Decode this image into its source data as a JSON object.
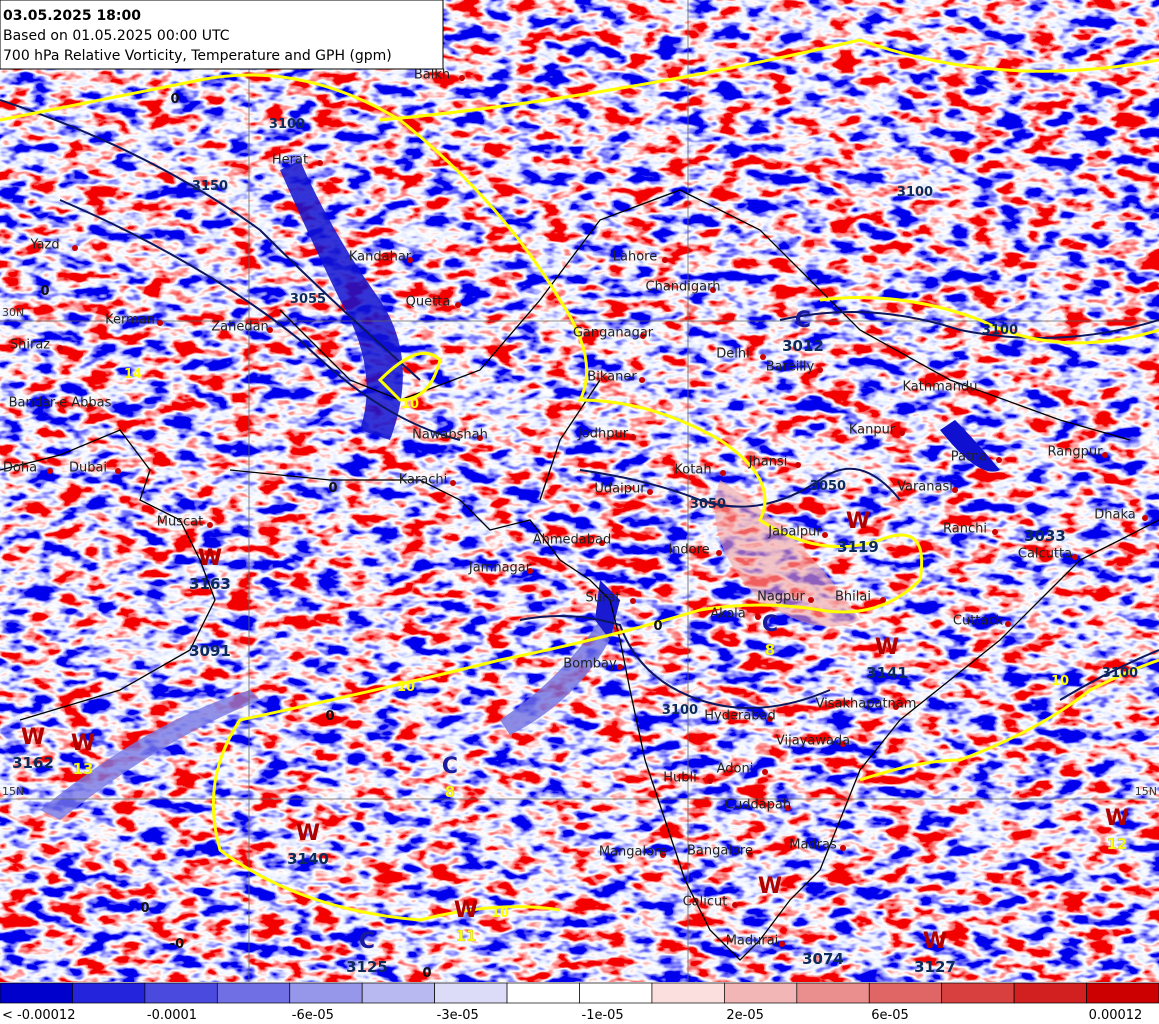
{
  "header": {
    "lines": [
      "03.05.2025 18:00",
      "Based on 01.05.2025 00:00 UTC",
      "700 hPa Relative Vorticity, Temperature and GPH (gpm)"
    ]
  },
  "colorbar": {
    "colors": [
      "#0000cc",
      "#2424dd",
      "#4a4ade",
      "#7070e4",
      "#9696ea",
      "#b9b9f2",
      "#dcdcf9",
      "#ffffff",
      "#ffffff",
      "#fbdede",
      "#f3b6b6",
      "#eb8e8e",
      "#e06666",
      "#d84040",
      "#d21f1f",
      "#cc0000"
    ],
    "labels": [
      "< -0.00012",
      "-0.0001",
      "-6e-05",
      "-3e-05",
      "-1e-05",
      "2e-05",
      "6e-05",
      "0.00012"
    ]
  },
  "grid_labels": [
    "30N",
    "15N",
    "15N"
  ],
  "places": [
    "Herat",
    "Kandahar",
    "Quetta",
    "Lahore",
    "Chandigarh",
    "Delhi",
    "Bareilly",
    "Kanpur",
    "Jodhpur",
    "Kotah",
    "Jhansi",
    "Udaipur",
    "Ahmedabad",
    "Indore",
    "Jamnagar",
    "Surat",
    "Jabalpur",
    "Nagpur",
    "Bhilai",
    "Akola",
    "Bombay",
    "Hyderabad",
    "Visakhapatnam",
    "Vijayawada",
    "Hubli",
    "Adoni",
    "Cuddapah",
    "Mangalore",
    "Bangalore",
    "Madras",
    "Calicut",
    "Madurai",
    "Varanasi",
    "Ranchi",
    "Calcutta",
    "Patna",
    "Rangpur",
    "Dhaka",
    "Cuttack",
    "Kathmandu",
    "Karachi",
    "Nawabshah",
    "Muscat",
    "Dubai",
    "Doha",
    "Bandar-e Abbas",
    "Kerman",
    "Shiraz",
    "Yazd",
    "Zahedan",
    "Ganganagar",
    "Bikaner",
    "Balkh"
  ],
  "centers": [
    {
      "letter": "W",
      "value": 3163
    },
    {
      "value": 3091
    },
    {
      "letter": "W",
      "value": 3162
    },
    {
      "letter": "W",
      "value": 13
    },
    {
      "letter": "C",
      "value": 8
    },
    {
      "letter": "W",
      "value": 3140
    },
    {
      "letter": "W",
      "value": 11
    },
    {
      "letter": "C",
      "value": 3125
    },
    {
      "letter": "W",
      "value": 3119
    },
    {
      "letter": "C",
      "value": 8
    },
    {
      "letter": "W",
      "value": 3141
    },
    {
      "letter": "W"
    },
    {
      "value": 3074
    },
    {
      "letter": "W",
      "value": 3127
    },
    {
      "letter": "W",
      "value": 12
    },
    {
      "letter": "C",
      "value": 3012
    },
    {
      "value": 3033
    }
  ],
  "contour_labels": [
    "3100",
    "3150",
    "3055",
    "10",
    "14",
    "3050",
    "3050",
    "3100",
    "3100",
    "10",
    "10",
    "10",
    "0",
    "0",
    "0",
    "0",
    "0",
    "0",
    "0",
    "-0",
    "3100",
    "3100"
  ]
}
